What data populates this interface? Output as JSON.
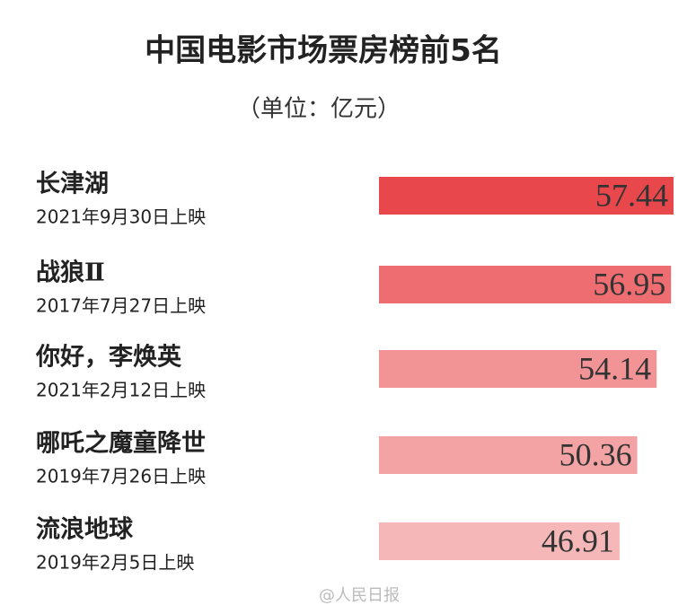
{
  "chart_data": {
    "type": "bar",
    "orientation": "horizontal",
    "title": "中国电影市场票房榜前5名",
    "subtitle": "（单位：亿元）",
    "categories": [
      "长津湖",
      "战狼Ⅱ",
      "你好，李焕英",
      "哪吒之魔童降世",
      "流浪地球"
    ],
    "release_dates": [
      "2021年9月30日上映",
      "2017年7月27日上映",
      "2021年2月12日上映",
      "2019年7月26日上映",
      "2019年2月5日上映"
    ],
    "values": [
      57.44,
      56.95,
      54.14,
      50.36,
      46.91
    ],
    "colors": [
      "#e8474c",
      "#ee6d70",
      "#f29395",
      "#f4a3a5",
      "#f6b7b8"
    ],
    "watermark": "@人民日报"
  }
}
